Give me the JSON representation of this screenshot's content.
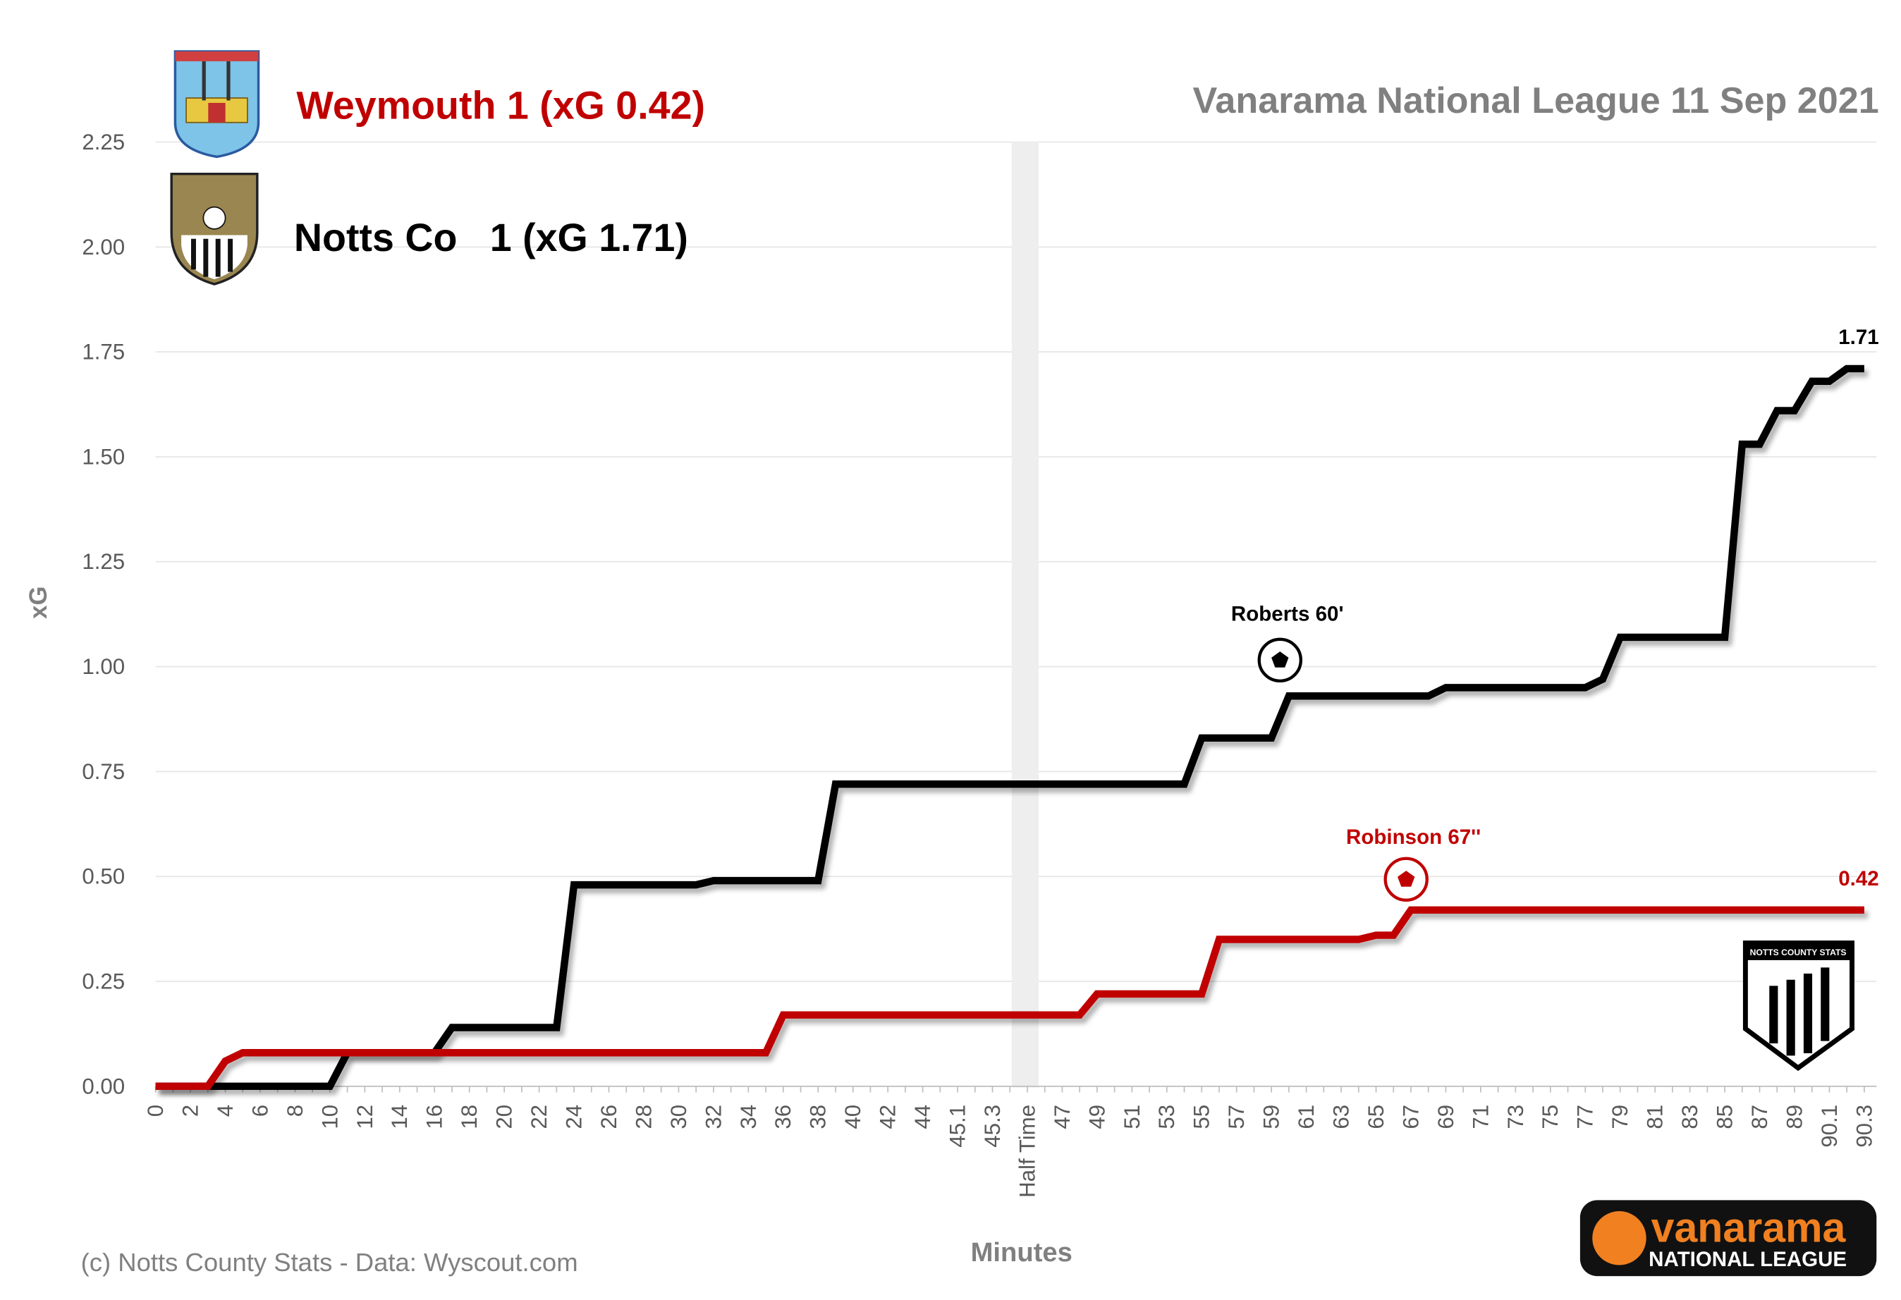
{
  "chart_data": {
    "type": "line",
    "title": "Vanarama National League  11 Sep 2021",
    "x_label": "Minutes",
    "y_label": "xG",
    "credit": "(c) Notts County Stats - Data: Wyscout.com",
    "logo_text": [
      "vanarama",
      "NATIONAL LEAGUE",
      "NOTTS COUNTY STATS"
    ],
    "categories": [
      0,
      null,
      2,
      null,
      4,
      null,
      6,
      null,
      8,
      null,
      10,
      null,
      12,
      null,
      14,
      null,
      16,
      null,
      18,
      null,
      20,
      null,
      22,
      null,
      24,
      null,
      26,
      null,
      28,
      null,
      30,
      null,
      32,
      null,
      34,
      null,
      36,
      null,
      38,
      null,
      40,
      null,
      42,
      null,
      44,
      null,
      45.1,
      null,
      45.3,
      null,
      "Half Time",
      null,
      47,
      null,
      49,
      null,
      51,
      null,
      53,
      null,
      55,
      null,
      57,
      null,
      59,
      null,
      61,
      null,
      63,
      null,
      65,
      null,
      67,
      null,
      69,
      null,
      71,
      null,
      73,
      null,
      75,
      null,
      77,
      null,
      79,
      null,
      81,
      null,
      83,
      null,
      85,
      null,
      87,
      null,
      89,
      null,
      90.1,
      null,
      90.3
    ],
    "series": [
      {
        "name": "Notts Co   1 (xG 1.71)",
        "color": "#000000",
        "values": [
          0,
          0,
          0,
          0,
          0,
          0,
          0,
          0,
          0,
          0,
          0,
          0.08,
          0.08,
          0.08,
          0.08,
          0.08,
          0.08,
          0.14,
          0.14,
          0.14,
          0.14,
          0.14,
          0.14,
          0.14,
          0.48,
          0.48,
          0.48,
          0.48,
          0.48,
          0.48,
          0.48,
          0.48,
          0.49,
          0.49,
          0.49,
          0.49,
          0.49,
          0.49,
          0.49,
          0.72,
          0.72,
          0.72,
          0.72,
          0.72,
          0.72,
          0.72,
          0.72,
          0.72,
          0.72,
          0.72,
          0.72,
          0.72,
          0.72,
          0.72,
          0.72,
          0.72,
          0.72,
          0.72,
          0.72,
          0.72,
          0.83,
          0.83,
          0.83,
          0.83,
          0.83,
          0.93,
          0.93,
          0.93,
          0.93,
          0.93,
          0.93,
          0.93,
          0.93,
          0.93,
          0.95,
          0.95,
          0.95,
          0.95,
          0.95,
          0.95,
          0.95,
          0.95,
          0.95,
          0.97,
          1.07,
          1.07,
          1.07,
          1.07,
          1.07,
          1.07,
          1.07,
          1.53,
          1.53,
          1.61,
          1.61,
          1.68,
          1.68,
          1.71,
          1.71
        ]
      },
      {
        "name": "Weymouth 1 (xG 0.42)",
        "color": "#c00000",
        "values": [
          0,
          0,
          0,
          0,
          0.06,
          0.08,
          0.08,
          0.08,
          0.08,
          0.08,
          0.08,
          0.08,
          0.08,
          0.08,
          0.08,
          0.08,
          0.08,
          0.08,
          0.08,
          0.08,
          0.08,
          0.08,
          0.08,
          0.08,
          0.08,
          0.08,
          0.08,
          0.08,
          0.08,
          0.08,
          0.08,
          0.08,
          0.08,
          0.08,
          0.08,
          0.08,
          0.17,
          0.17,
          0.17,
          0.17,
          0.17,
          0.17,
          0.17,
          0.17,
          0.17,
          0.17,
          0.17,
          0.17,
          0.17,
          0.17,
          0.17,
          0.17,
          0.17,
          0.17,
          0.22,
          0.22,
          0.22,
          0.22,
          0.22,
          0.22,
          0.22,
          0.35,
          0.35,
          0.35,
          0.35,
          0.35,
          0.35,
          0.35,
          0.35,
          0.35,
          0.36,
          0.36,
          0.42,
          0.42,
          0.42,
          0.42,
          0.42,
          0.42,
          0.42,
          0.42,
          0.42,
          0.42,
          0.42,
          0.42,
          0.42,
          0.42,
          0.42,
          0.42,
          0.42,
          0.42,
          0.42,
          0.42,
          0.42,
          0.42,
          0.42,
          0.42,
          0.42,
          0.42,
          0.42
        ]
      }
    ],
    "annotations": [
      {
        "text": "Roberts 60'",
        "color": "#000000"
      },
      {
        "text": "Robinson 67''",
        "color": "#c00000"
      }
    ],
    "ylim": [
      0,
      2.25
    ],
    "yticks": [
      {
        "value": 0,
        "label": "0.00"
      },
      {
        "value": 0.25,
        "label": "0.25"
      },
      {
        "value": 0.5,
        "label": "0.50"
      },
      {
        "value": 0.75,
        "label": "0.75"
      },
      {
        "value": 1,
        "label": "1.00"
      },
      {
        "value": 1.25,
        "label": "1.25"
      },
      {
        "value": 1.5,
        "label": "1.50"
      },
      {
        "value": 1.75,
        "label": "1.75"
      },
      {
        "value": 2,
        "label": "2.00"
      },
      {
        "value": 2.25,
        "label": "2.25"
      }
    ],
    "grid": true
  }
}
